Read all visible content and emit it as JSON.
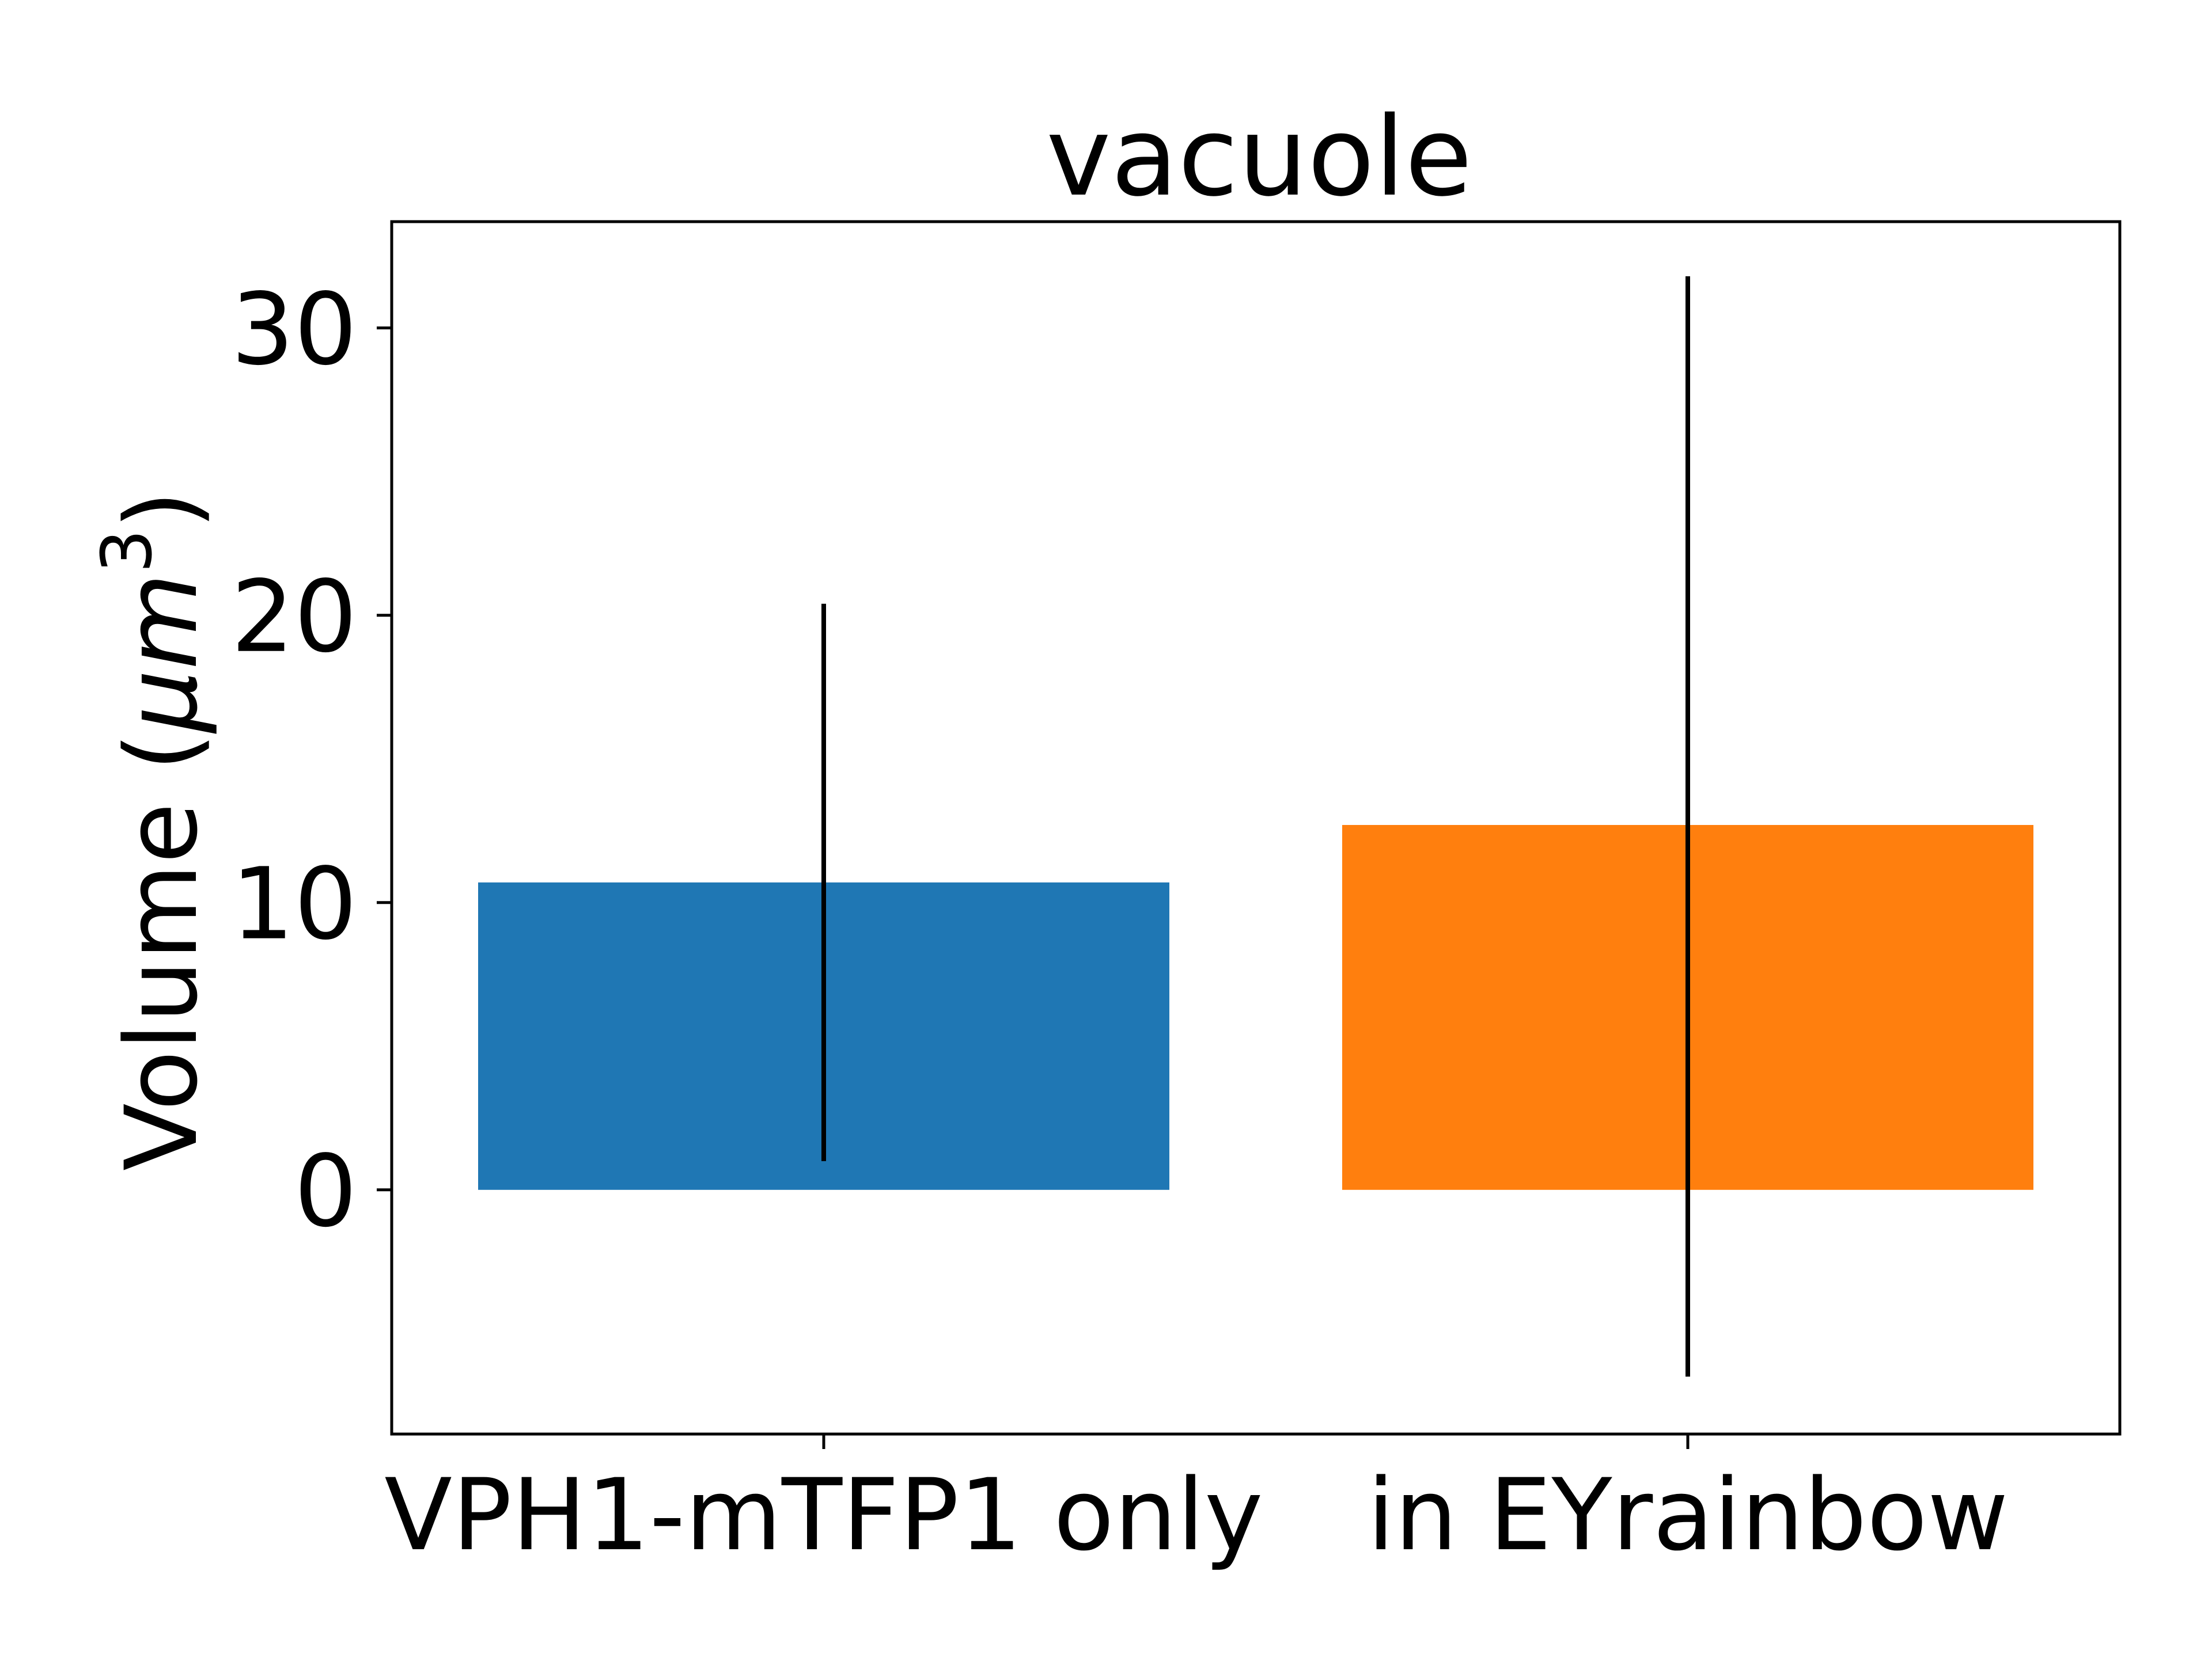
{
  "chart_data": {
    "type": "bar",
    "title": "vacuole",
    "xlabel": "",
    "ylabel_main": "Volume (",
    "ylabel_mu": "μ",
    "ylabel_m": "m",
    "ylabel_sup": "3",
    "ylabel_close": ")",
    "categories": [
      "VPH1-mTFP1 only",
      "in EYrainbow"
    ],
    "values": [
      10.7,
      12.7
    ],
    "error_low": [
      1.0,
      -6.5
    ],
    "error_high": [
      20.4,
      31.8
    ],
    "colors": [
      "#1f77b4",
      "#ff7f0e"
    ],
    "ylim": [
      -8.5,
      33.7
    ],
    "yticks": [
      0,
      10,
      20,
      30
    ],
    "ytick_labels": [
      "0",
      "10",
      "20",
      "30"
    ],
    "grid": false,
    "legend": "none"
  }
}
